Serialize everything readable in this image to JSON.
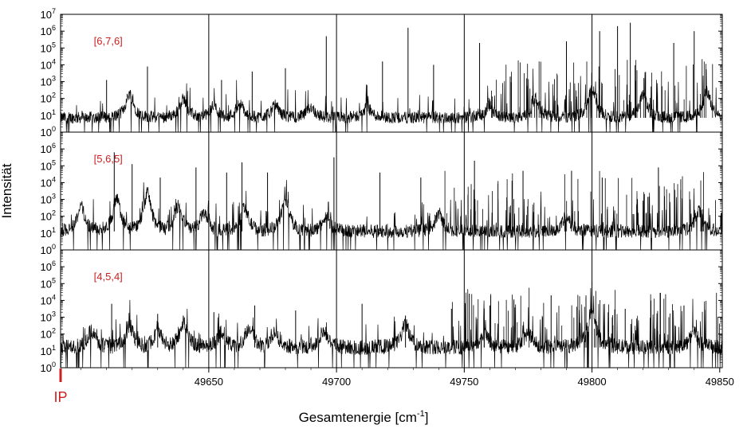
{
  "chart_data": {
    "type": "line",
    "xlabel": "Gesamtenergie [cm",
    "xlabel_sup": "-1",
    "xlabel_close": "]",
    "ylabel": "Intensität",
    "xlim": [
      49592,
      49851
    ],
    "y_scale": "log",
    "ylim": [
      1,
      10000000
    ],
    "y_tick_base": "10",
    "y_tick_exponents": [
      "0",
      "1",
      "2",
      "3",
      "4",
      "5",
      "6",
      "7"
    ],
    "x_ticks": [
      49650,
      49700,
      49750,
      49800,
      49850
    ],
    "x_tick_labels": [
      "49650",
      "49700",
      "49750",
      "49800",
      "49850"
    ],
    "vertical_gridlines": [
      49650,
      49700,
      49750,
      49800
    ],
    "line_color": "#000000",
    "label_color": "#cc2020",
    "marker": {
      "label": "IP",
      "x": 49592,
      "color": "#cc2020"
    },
    "panels": [
      {
        "label": "[6,7,6]",
        "baseline_log10": 0.85,
        "noise_log10": 0.35,
        "broad_peaks": [
          {
            "x": 49619,
            "h": 2.3
          },
          {
            "x": 49640,
            "h": 2.0
          },
          {
            "x": 49652,
            "h": 1.6
          },
          {
            "x": 49662,
            "h": 1.7
          },
          {
            "x": 49676,
            "h": 1.6
          },
          {
            "x": 49690,
            "h": 1.5
          },
          {
            "x": 49712,
            "h": 1.5
          },
          {
            "x": 49760,
            "h": 1.6
          },
          {
            "x": 49778,
            "h": 2.0
          },
          {
            "x": 49800,
            "h": 2.6
          },
          {
            "x": 49820,
            "h": 2.2
          },
          {
            "x": 49845,
            "h": 2.4
          }
        ],
        "spikes": [
          {
            "x": 49610,
            "h": 3.1
          },
          {
            "x": 49626,
            "h": 3.9
          },
          {
            "x": 49655,
            "h": 3.1
          },
          {
            "x": 49667,
            "h": 3.6
          },
          {
            "x": 49680,
            "h": 3.8
          },
          {
            "x": 49696,
            "h": 5.7
          },
          {
            "x": 49718,
            "h": 4.2
          },
          {
            "x": 49728,
            "h": 6.2
          },
          {
            "x": 49738,
            "h": 4.0
          },
          {
            "x": 49756,
            "h": 5.3
          },
          {
            "x": 49768,
            "h": 3.3
          },
          {
            "x": 49790,
            "h": 5.4
          },
          {
            "x": 49803,
            "h": 6.0
          },
          {
            "x": 49810,
            "h": 6.3
          },
          {
            "x": 49815,
            "h": 6.5
          },
          {
            "x": 49832,
            "h": 5.3
          },
          {
            "x": 49840,
            "h": 6.0
          }
        ],
        "dense_from": 49760
      },
      {
        "label": "[5,6,5]",
        "baseline_log10": 1.1,
        "noise_log10": 0.4,
        "broad_peaks": [
          {
            "x": 49600,
            "h": 2.6
          },
          {
            "x": 49614,
            "h": 3.0
          },
          {
            "x": 49626,
            "h": 3.4
          },
          {
            "x": 49638,
            "h": 2.6
          },
          {
            "x": 49648,
            "h": 2.2
          },
          {
            "x": 49664,
            "h": 2.5
          },
          {
            "x": 49680,
            "h": 3.0
          },
          {
            "x": 49696,
            "h": 2.0
          },
          {
            "x": 49740,
            "h": 2.1
          },
          {
            "x": 49790,
            "h": 2.0
          },
          {
            "x": 49842,
            "h": 2.3
          }
        ],
        "spikes": [
          {
            "x": 49613,
            "h": 5.8
          },
          {
            "x": 49620,
            "h": 5.1
          },
          {
            "x": 49631,
            "h": 4.3
          },
          {
            "x": 49645,
            "h": 4.9
          },
          {
            "x": 49657,
            "h": 4.6
          },
          {
            "x": 49663,
            "h": 5.2
          },
          {
            "x": 49673,
            "h": 4.6
          },
          {
            "x": 49699,
            "h": 5.5
          },
          {
            "x": 49717,
            "h": 4.6
          },
          {
            "x": 49733,
            "h": 4.3
          },
          {
            "x": 49754,
            "h": 5.3
          },
          {
            "x": 49773,
            "h": 4.7
          },
          {
            "x": 49792,
            "h": 4.7
          },
          {
            "x": 49804,
            "h": 4.3
          },
          {
            "x": 49826,
            "h": 4.9
          }
        ],
        "dense_from": 49740
      },
      {
        "label": "[4,5,4]",
        "baseline_log10": 1.2,
        "noise_log10": 0.45,
        "broad_peaks": [
          {
            "x": 49604,
            "h": 2.2
          },
          {
            "x": 49619,
            "h": 2.5
          },
          {
            "x": 49630,
            "h": 2.3
          },
          {
            "x": 49640,
            "h": 2.7
          },
          {
            "x": 49655,
            "h": 2.1
          },
          {
            "x": 49666,
            "h": 2.4
          },
          {
            "x": 49676,
            "h": 2.1
          },
          {
            "x": 49695,
            "h": 2.2
          },
          {
            "x": 49727,
            "h": 2.6
          },
          {
            "x": 49758,
            "h": 2.0
          },
          {
            "x": 49775,
            "h": 2.1
          },
          {
            "x": 49800,
            "h": 3.5
          },
          {
            "x": 49840,
            "h": 2.2
          }
        ],
        "spikes": [
          {
            "x": 49612,
            "h": 3.8
          },
          {
            "x": 49630,
            "h": 3.2
          },
          {
            "x": 49652,
            "h": 3.3
          },
          {
            "x": 49668,
            "h": 3.7
          },
          {
            "x": 49684,
            "h": 3.4
          },
          {
            "x": 49710,
            "h": 3.8
          },
          {
            "x": 49727,
            "h": 3.1
          },
          {
            "x": 49745,
            "h": 3.5
          },
          {
            "x": 49752,
            "h": 4.4
          },
          {
            "x": 49760,
            "h": 3.7
          },
          {
            "x": 49784,
            "h": 4.3
          },
          {
            "x": 49800,
            "h": 3.8
          },
          {
            "x": 49813,
            "h": 3.5
          },
          {
            "x": 49836,
            "h": 3.7
          }
        ],
        "dense_from": 49745
      }
    ]
  }
}
